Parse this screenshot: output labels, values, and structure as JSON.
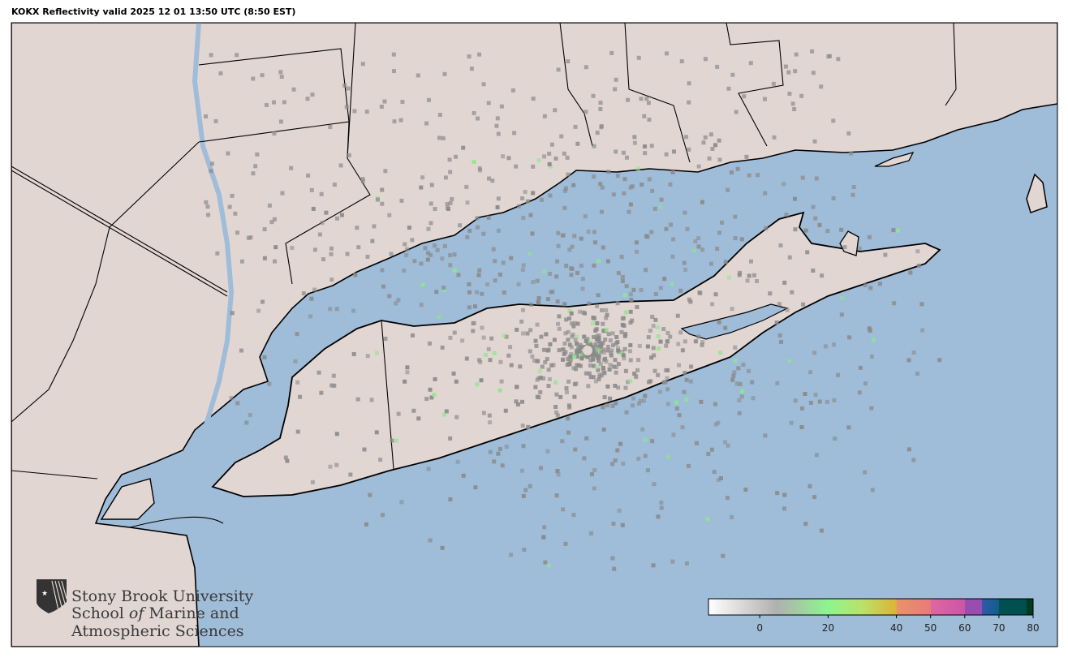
{
  "title": "KOKX Reflectivity valid 2025 12 01 13:50 UTC (8:50 EST)",
  "colors": {
    "water": "#9fbcd8",
    "land": "#e2d6d3",
    "border": "#000000",
    "echo_weak": "#8a8a8a",
    "echo_green": "#8ee68e"
  },
  "radar": {
    "site": "KOKX"
  },
  "colorbar": {
    "min": -15,
    "max": 80,
    "ticks": [
      {
        "value": 0,
        "label": "0"
      },
      {
        "value": 20,
        "label": "20"
      },
      {
        "value": 40,
        "label": "40"
      },
      {
        "value": 50,
        "label": "50"
      },
      {
        "value": 60,
        "label": "60"
      },
      {
        "value": 70,
        "label": "70"
      },
      {
        "value": 80,
        "label": "80"
      }
    ],
    "stops": [
      {
        "value": -15,
        "color": "#ffffff"
      },
      {
        "value": 5,
        "color": "#b0b0b0"
      },
      {
        "value": 20,
        "color": "#8ef58e"
      },
      {
        "value": 30,
        "color": "#b9e26a"
      },
      {
        "value": 40,
        "color": "#dcb435"
      },
      {
        "value": 40.1,
        "color": "#e8946a"
      },
      {
        "value": 50,
        "color": "#e87a78"
      },
      {
        "value": 50.1,
        "color": "#e066a0"
      },
      {
        "value": 60,
        "color": "#cc55a8"
      },
      {
        "value": 60.1,
        "color": "#9a4db0"
      },
      {
        "value": 65,
        "color": "#9a4db0"
      },
      {
        "value": 65.1,
        "color": "#2e5aa8"
      },
      {
        "value": 70,
        "color": "#135c8c"
      },
      {
        "value": 70.1,
        "color": "#005050"
      },
      {
        "value": 78,
        "color": "#005050"
      },
      {
        "value": 78.1,
        "color": "#063a1e"
      },
      {
        "value": 80,
        "color": "#063a1e"
      }
    ]
  },
  "logo": {
    "line1": "Stony Brook University",
    "line2a": "School ",
    "line2b": "of",
    "line2c": " Marine and",
    "line3": "Atmospheric Sciences"
  }
}
